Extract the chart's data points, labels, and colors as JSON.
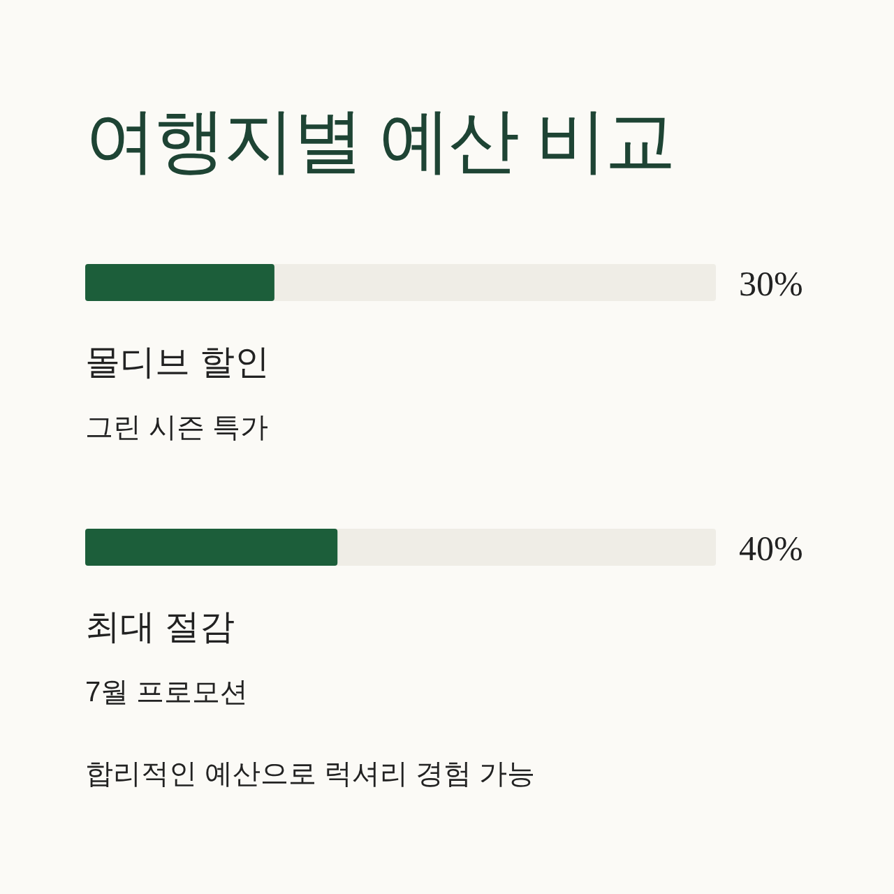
{
  "chart_data": {
    "type": "bar",
    "orientation": "horizontal",
    "title": "여행지별 예산 비교",
    "categories": [
      "몰디브 할인",
      "최대 절감"
    ],
    "values": [
      30,
      40
    ],
    "value_labels": [
      "30%",
      "40%"
    ],
    "color": "#1c5e3a",
    "xlim": [
      0,
      100
    ],
    "annotations": [
      "그린 시즌 특가",
      "7월 프로모션",
      "합리적인 예산으로 럭셔리 경험 가능"
    ]
  }
}
